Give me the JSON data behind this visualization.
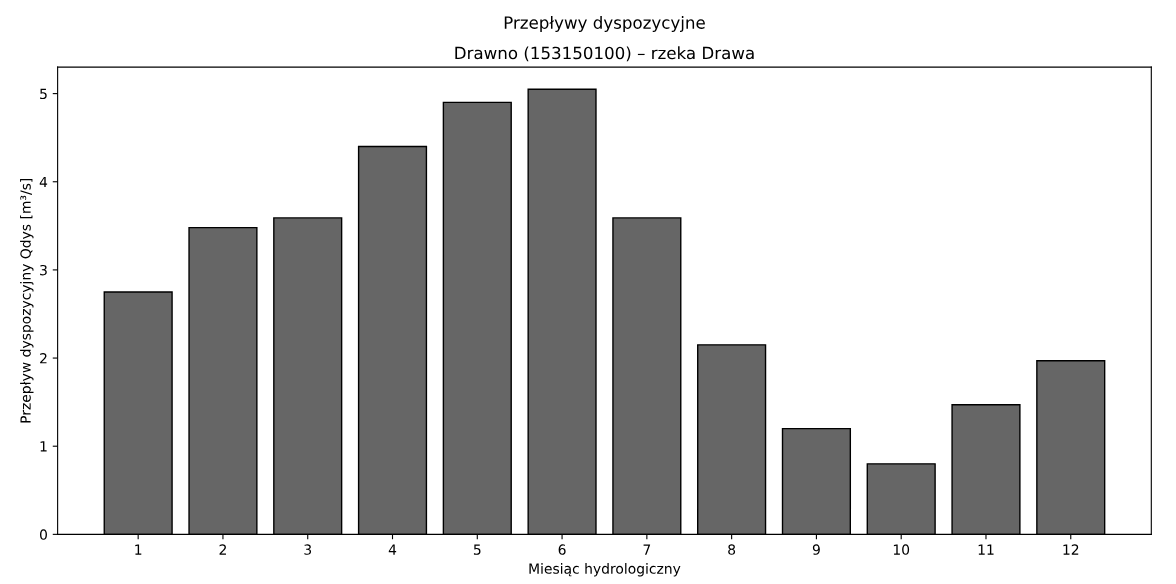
{
  "chart_data": {
    "type": "bar",
    "title": "Przepływy dyspozycyjne",
    "subtitle": "Drawno (153150100) – rzeka Drawa",
    "xlabel": "Miesiąc hydrologiczny",
    "ylabel": "Przepływ dyspozycyjny Qdys [m³/s]",
    "categories": [
      "1",
      "2",
      "3",
      "4",
      "5",
      "6",
      "7",
      "8",
      "9",
      "10",
      "11",
      "12"
    ],
    "values": [
      2.75,
      3.48,
      3.59,
      4.4,
      4.9,
      5.05,
      3.59,
      2.15,
      1.2,
      0.8,
      1.47,
      1.97
    ],
    "color": "#666666",
    "ylim": [
      0,
      5.3
    ],
    "yticks": [
      0,
      1,
      2,
      3,
      4,
      5
    ],
    "grid": false
  }
}
